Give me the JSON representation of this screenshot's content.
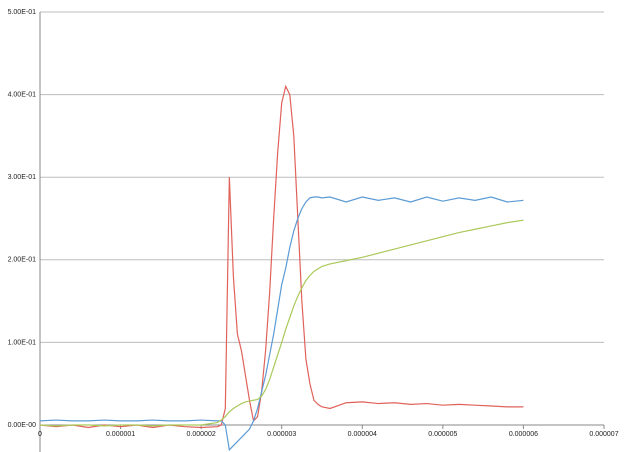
{
  "chart_data": {
    "type": "line",
    "x": [
      0,
      2e-07,
      4e-07,
      6e-07,
      8e-07,
      1e-06,
      1.2e-06,
      1.4e-06,
      1.6e-06,
      1.8e-06,
      2e-06,
      2.2e-06,
      2.25e-06,
      2.3e-06,
      2.35e-06,
      2.4e-06,
      2.45e-06,
      2.5e-06,
      2.55e-06,
      2.6e-06,
      2.65e-06,
      2.7e-06,
      2.75e-06,
      2.8e-06,
      2.85e-06,
      2.9e-06,
      2.95e-06,
      3e-06,
      3.05e-06,
      3.1e-06,
      3.15e-06,
      3.2e-06,
      3.25e-06,
      3.3e-06,
      3.35e-06,
      3.4e-06,
      3.45e-06,
      3.5e-06,
      3.6e-06,
      3.8e-06,
      4e-06,
      4.2e-06,
      4.4e-06,
      4.6e-06,
      4.8e-06,
      5e-06,
      5.2e-06,
      5.4e-06,
      5.6e-06,
      5.8e-06,
      6e-06
    ],
    "series": [
      {
        "color": "#e0625a",
        "values": [
          0,
          -0.002,
          0,
          -0.003,
          0,
          -0.002,
          0,
          -0.003,
          0,
          -0.002,
          -0.003,
          -0.002,
          0.0,
          0.02,
          0.3,
          0.18,
          0.11,
          0.09,
          0.06,
          0.03,
          0.005,
          0.01,
          0.04,
          0.09,
          0.16,
          0.25,
          0.33,
          0.39,
          0.41,
          0.4,
          0.35,
          0.25,
          0.15,
          0.08,
          0.05,
          0.03,
          0.025,
          0.022,
          0.02,
          0.027,
          0.028,
          0.026,
          0.027,
          0.025,
          0.026,
          0.024,
          0.025,
          0.024,
          0.023,
          0.022,
          0.022
        ]
      },
      {
        "color": "#5b9bd5",
        "values": [
          0.005,
          0.006,
          0.005,
          0.005,
          0.006,
          0.005,
          0.005,
          0.006,
          0.005,
          0.005,
          0.006,
          0.005,
          0.005,
          0.0,
          -0.03,
          -0.025,
          -0.02,
          -0.015,
          -0.01,
          -0.005,
          0.005,
          0.02,
          0.04,
          0.06,
          0.085,
          0.11,
          0.14,
          0.17,
          0.19,
          0.215,
          0.235,
          0.25,
          0.262,
          0.27,
          0.275,
          0.276,
          0.276,
          0.275,
          0.276,
          0.27,
          0.276,
          0.272,
          0.275,
          0.27,
          0.276,
          0.271,
          0.275,
          0.272,
          0.276,
          0.27,
          0.272
        ]
      },
      {
        "color": "#a9c95a",
        "values": [
          0,
          -0.001,
          0,
          0,
          -0.001,
          0,
          0,
          -0.001,
          0,
          0,
          0,
          0.003,
          0.006,
          0.01,
          0.016,
          0.02,
          0.023,
          0.026,
          0.028,
          0.029,
          0.03,
          0.031,
          0.035,
          0.043,
          0.055,
          0.07,
          0.085,
          0.1,
          0.116,
          0.13,
          0.144,
          0.156,
          0.166,
          0.175,
          0.181,
          0.186,
          0.189,
          0.192,
          0.195,
          0.199,
          0.203,
          0.208,
          0.213,
          0.218,
          0.223,
          0.228,
          0.233,
          0.237,
          0.241,
          0.245,
          0.248
        ]
      }
    ],
    "xlim": [
      0,
      7e-06
    ],
    "xticks": [
      0,
      1e-06,
      2e-06,
      3e-06,
      4e-06,
      5e-06,
      6e-06,
      7e-06
    ],
    "ylim": [
      -0.03,
      0.5
    ],
    "yticks": [
      {
        "value": 0,
        "label": "0.00E-00"
      },
      {
        "value": 0.1,
        "label": "1.00E-01"
      },
      {
        "value": 0.2,
        "label": "2.00E-01"
      },
      {
        "value": 0.3,
        "label": "3.00E-01"
      },
      {
        "value": 0.4,
        "label": "4.00E-01"
      },
      {
        "value": 0.5,
        "label": "5.00E-01"
      }
    ],
    "grid": true
  }
}
